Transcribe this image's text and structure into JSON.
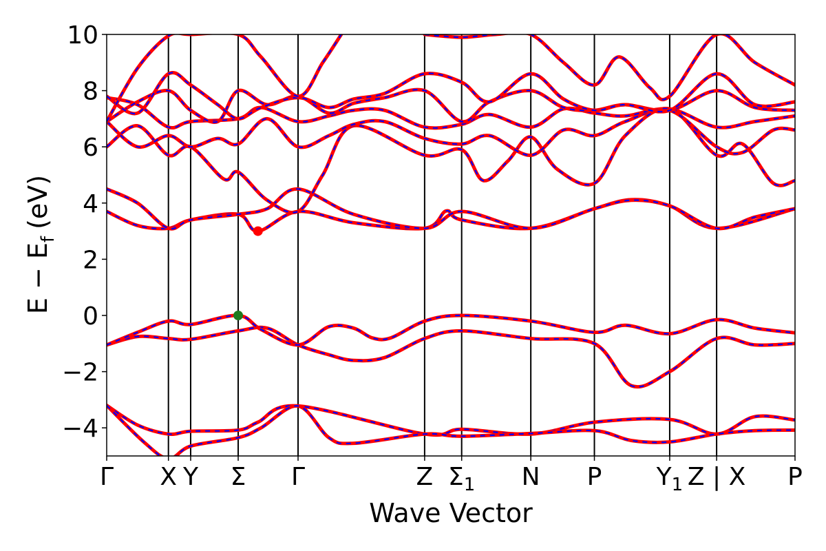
{
  "chart_data": {
    "type": "line",
    "title": "",
    "xlabel": "Wave Vector",
    "ylabel": "E − E",
    "ylabel_sub": "f",
    "ylabel_unit": "(eV)",
    "ylim": [
      -5,
      10
    ],
    "xlim": [
      0,
      11.15
    ],
    "yticks": [
      -4,
      -2,
      0,
      2,
      4,
      6,
      8,
      10
    ],
    "ytick_labels": [
      "−4",
      "−2",
      "0",
      "2",
      "4",
      "6",
      "8",
      "10"
    ],
    "kpoints": [
      {
        "x": 0.0,
        "label": "Γ",
        "sub": ""
      },
      {
        "x": 1.0,
        "label": "X",
        "sub": ""
      },
      {
        "x": 1.36,
        "label": "Y",
        "sub": ""
      },
      {
        "x": 2.13,
        "label": "Σ",
        "sub": ""
      },
      {
        "x": 3.1,
        "label": "Γ",
        "sub": ""
      },
      {
        "x": 5.15,
        "label": "Z",
        "sub": ""
      },
      {
        "x": 5.75,
        "label": "Σ",
        "sub": "1"
      },
      {
        "x": 6.87,
        "label": "N",
        "sub": ""
      },
      {
        "x": 7.9,
        "label": "P",
        "sub": ""
      },
      {
        "x": 9.12,
        "label": "Y",
        "sub": "1"
      },
      {
        "x": 9.88,
        "label": "Z | X",
        "sub": ""
      },
      {
        "x": 11.15,
        "label": "P",
        "sub": ""
      }
    ],
    "series": [
      {
        "x": [
          0,
          0.5,
          1.0,
          1.36,
          2.13,
          2.45,
          3.1,
          5.15,
          5.75,
          6.87,
          7.9,
          9.12,
          9.88,
          10.5,
          11.15
        ],
        "values": [
          -3.2,
          -3.9,
          -4.22,
          -4.12,
          -4.08,
          -3.8,
          -3.22,
          -4.22,
          -4.05,
          -4.22,
          -3.8,
          -3.7,
          -4.22,
          -3.6,
          -3.72
        ]
      },
      {
        "x": [
          0,
          0.6,
          1.0,
          1.36,
          2.13,
          2.5,
          3.1,
          3.6,
          4.0,
          5.15,
          5.75,
          6.87,
          7.9,
          8.5,
          9.12,
          9.88,
          10.5,
          11.15
        ],
        "values": [
          -3.2,
          -4.5,
          -5.1,
          -4.65,
          -4.35,
          -4.0,
          -3.22,
          -4.35,
          -4.55,
          -4.22,
          -4.3,
          -4.2,
          -4.1,
          -4.45,
          -4.5,
          -4.22,
          -4.1,
          -4.08
        ]
      },
      {
        "x": [
          0,
          0.5,
          1.0,
          1.36,
          2.13,
          2.6,
          3.1,
          3.6,
          4.0,
          4.5,
          5.15,
          5.75,
          6.87,
          7.9,
          8.5,
          9.12,
          9.88,
          10.5,
          11.15
        ],
        "values": [
          -1.05,
          -0.75,
          -0.82,
          -0.85,
          -0.55,
          -0.45,
          -1.05,
          -1.4,
          -1.6,
          -1.5,
          -0.82,
          -0.55,
          -0.82,
          -1.0,
          -2.5,
          -2.0,
          -0.82,
          -1.05,
          -1.0
        ]
      },
      {
        "x": [
          0,
          0.5,
          1.0,
          1.36,
          2.13,
          2.5,
          3.1,
          3.6,
          4.0,
          4.3,
          4.6,
          5.15,
          5.75,
          6.87,
          7.9,
          8.4,
          9.12,
          9.88,
          10.5,
          11.15
        ],
        "values": [
          -1.05,
          -0.6,
          -0.2,
          -0.32,
          0.0,
          -0.5,
          -1.05,
          -0.4,
          -0.45,
          -0.8,
          -0.8,
          -0.2,
          0.0,
          -0.2,
          -0.6,
          -0.35,
          -0.65,
          -0.15,
          -0.45,
          -0.62
        ]
      },
      {
        "x": [
          0,
          0.5,
          1.0,
          1.36,
          2.13,
          2.45,
          3.1,
          4.0,
          5.15,
          5.5,
          5.75,
          6.87,
          7.9,
          8.5,
          9.12,
          9.88,
          11.15
        ],
        "values": [
          3.7,
          3.2,
          3.1,
          3.4,
          3.6,
          3.0,
          3.7,
          3.3,
          3.1,
          3.72,
          3.4,
          3.1,
          3.8,
          4.12,
          3.9,
          3.1,
          3.8
        ]
      },
      {
        "x": [
          0,
          0.5,
          1.0,
          1.36,
          2.13,
          2.6,
          3.1,
          4.0,
          5.15,
          5.75,
          6.87,
          7.9,
          8.5,
          9.12,
          9.88,
          10.5,
          11.15
        ],
        "values": [
          4.5,
          4.0,
          3.1,
          3.4,
          3.6,
          3.8,
          4.5,
          3.6,
          3.1,
          3.7,
          3.1,
          3.8,
          4.1,
          3.9,
          3.1,
          3.5,
          3.8
        ]
      },
      {
        "x": [
          0,
          0.5,
          1.0,
          1.36,
          1.9,
          2.13,
          2.6,
          3.1,
          3.5,
          4.0,
          5.15,
          5.75,
          6.1,
          6.5,
          6.87,
          7.3,
          7.9,
          8.4,
          9.12,
          9.88,
          10.3,
          10.8,
          11.15
        ],
        "values": [
          6.0,
          6.75,
          5.7,
          6.0,
          4.85,
          5.1,
          4.1,
          3.7,
          5.0,
          6.75,
          5.7,
          5.9,
          4.8,
          5.5,
          6.35,
          5.2,
          4.7,
          6.4,
          7.35,
          5.7,
          6.1,
          4.7,
          4.8
        ]
      },
      {
        "x": [
          0,
          0.5,
          1.0,
          1.36,
          1.8,
          2.13,
          2.6,
          3.1,
          3.6,
          4.0,
          4.5,
          5.15,
          5.75,
          6.2,
          6.87,
          7.4,
          7.9,
          8.4,
          9.12,
          9.88,
          10.3,
          10.8,
          11.15
        ],
        "values": [
          6.9,
          6.0,
          6.4,
          6.0,
          6.3,
          6.1,
          7.0,
          6.0,
          6.4,
          6.8,
          6.9,
          6.3,
          6.1,
          6.4,
          5.7,
          6.6,
          6.4,
          6.9,
          7.3,
          6.0,
          5.8,
          6.6,
          6.6
        ]
      },
      {
        "x": [
          0,
          0.5,
          1.0,
          1.36,
          2.13,
          2.5,
          3.1,
          3.6,
          4.0,
          4.5,
          5.15,
          5.75,
          6.2,
          6.87,
          7.4,
          7.9,
          8.4,
          9.12,
          9.88,
          10.5,
          11.15
        ],
        "values": [
          7.75,
          7.5,
          6.7,
          6.9,
          7.0,
          7.4,
          6.9,
          7.1,
          7.3,
          7.3,
          6.7,
          6.8,
          7.15,
          6.7,
          7.35,
          7.2,
          7.1,
          7.35,
          6.7,
          6.9,
          7.1
        ]
      },
      {
        "x": [
          0,
          0.5,
          1.0,
          1.36,
          1.8,
          2.13,
          2.6,
          3.1,
          3.6,
          4.0,
          4.5,
          5.15,
          5.75,
          6.2,
          6.87,
          7.4,
          7.9,
          8.4,
          9.12,
          9.88,
          10.5,
          11.15
        ],
        "values": [
          6.9,
          7.6,
          8.0,
          7.3,
          6.9,
          8.0,
          7.5,
          7.8,
          7.2,
          7.55,
          7.75,
          8.0,
          6.9,
          7.6,
          8.0,
          7.4,
          7.3,
          7.5,
          7.3,
          8.0,
          7.4,
          7.3
        ]
      },
      {
        "x": [
          0,
          0.5,
          1.0,
          1.36,
          1.8,
          2.13,
          2.5,
          3.1,
          3.6,
          4.0,
          4.5,
          5.15,
          5.75,
          6.2,
          6.87,
          7.4,
          7.9,
          8.4,
          9.12,
          9.88,
          10.5,
          11.15
        ],
        "values": [
          7.8,
          7.2,
          8.6,
          8.2,
          7.5,
          7.0,
          7.4,
          7.75,
          7.4,
          7.7,
          7.9,
          8.6,
          8.3,
          7.6,
          8.6,
          7.7,
          7.3,
          7.5,
          7.3,
          8.6,
          7.5,
          7.6
        ]
      },
      {
        "x": [
          0,
          0.5,
          1.0,
          1.36,
          2.13,
          2.5,
          3.1,
          3.5,
          3.8
        ],
        "values": [
          6.9,
          8.8,
          9.95,
          10.0,
          10.0,
          9.2,
          7.8,
          9.0,
          10.0
        ]
      },
      {
        "x": [
          5.15,
          5.75,
          6.3,
          6.87,
          7.4,
          7.9,
          8.3,
          8.8,
          9.12,
          9.88,
          10.5,
          11.15
        ],
        "values": [
          10.0,
          9.9,
          10.0,
          10.0,
          9.0,
          8.2,
          9.2,
          8.1,
          7.8,
          10.0,
          9.0,
          8.2
        ]
      }
    ],
    "markers": [
      {
        "name": "VBM",
        "x": 2.13,
        "y": 0.0,
        "color": "#1f7a1f"
      },
      {
        "name": "CBM",
        "x": 2.45,
        "y": 3.0,
        "color": "#ff0000"
      }
    ],
    "colors": {
      "line_main": "#ff0000",
      "line_dash": "#0000ff",
      "frame": "#000000",
      "vbm": "#1f7a1f",
      "cbm": "#ff0000"
    }
  }
}
